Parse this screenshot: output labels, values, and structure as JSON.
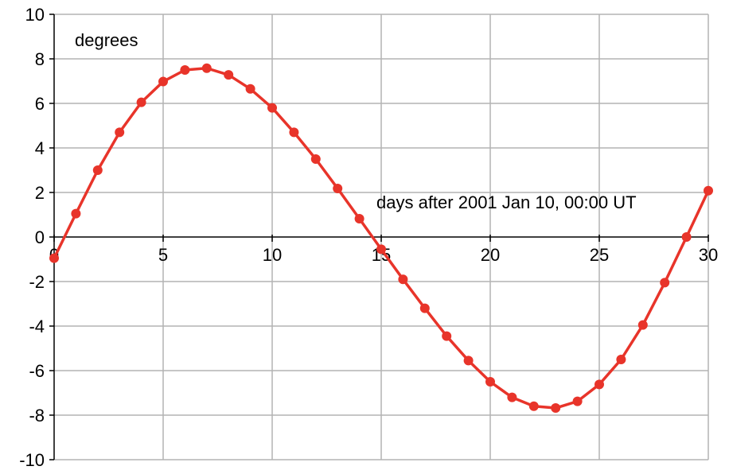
{
  "chart_data": {
    "type": "line",
    "title": "",
    "xlabel": "days after 2001 Jan 10, 00:00 UT",
    "ylabel": "degrees",
    "xlim": [
      0,
      30
    ],
    "ylim": [
      -10,
      10
    ],
    "x_ticks": [
      0,
      5,
      10,
      15,
      20,
      25,
      30
    ],
    "y_ticks": [
      -10,
      -8,
      -6,
      -4,
      -2,
      0,
      2,
      4,
      6,
      8,
      10
    ],
    "grid": true,
    "legend": "none",
    "series": [
      {
        "color": "#e8342a",
        "marker": "circle",
        "x": [
          0,
          1,
          2,
          3,
          4,
          5,
          6,
          7,
          8,
          9,
          10,
          11,
          12,
          13,
          14,
          15,
          16,
          17,
          18,
          19,
          20,
          21,
          22,
          23,
          24,
          25,
          26,
          27,
          28,
          29,
          30
        ],
        "y": [
          -0.95,
          1.05,
          3.0,
          4.7,
          6.05,
          6.98,
          7.5,
          7.58,
          7.28,
          6.65,
          5.8,
          4.7,
          3.5,
          2.18,
          0.82,
          -0.55,
          -1.9,
          -3.2,
          -4.45,
          -5.55,
          -6.5,
          -7.2,
          -7.6,
          -7.68,
          -7.38,
          -6.62,
          -5.5,
          -3.95,
          -2.05,
          0.0,
          2.08
        ]
      }
    ]
  }
}
